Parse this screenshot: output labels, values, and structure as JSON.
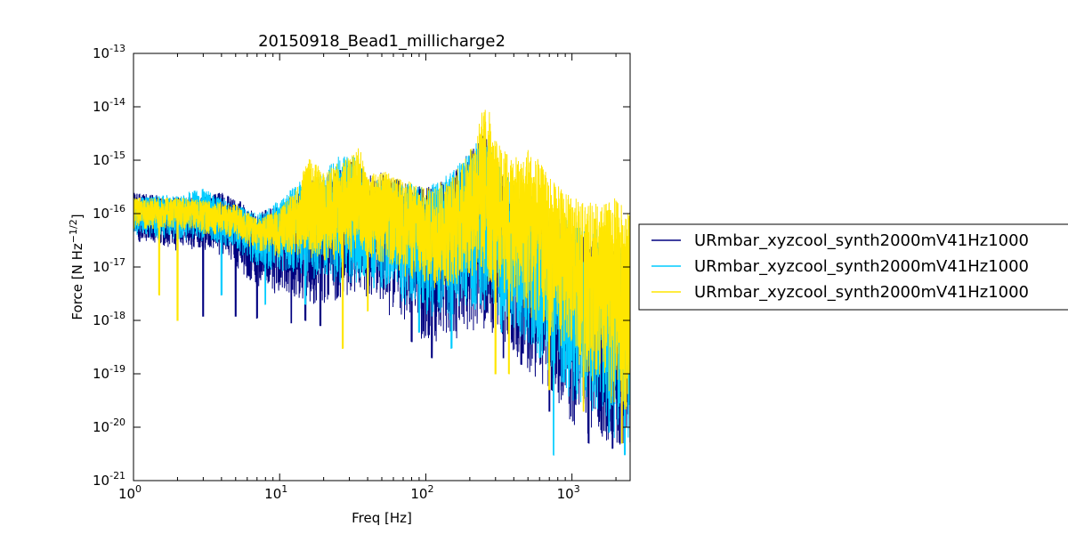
{
  "chart_data": {
    "type": "line",
    "title": "20150918_Bead1_millicharge2",
    "xlabel": "Freq [Hz]",
    "ylabel_main": "Force [N Hz",
    "ylabel_sup": "−1/2",
    "ylabel_end": "]",
    "xscale": "log",
    "yscale": "log",
    "xlim": [
      1,
      2500
    ],
    "ylim": [
      1e-21,
      1e-13
    ],
    "x_ticks": [
      {
        "base": "10",
        "exp": "0",
        "value": 1
      },
      {
        "base": "10",
        "exp": "1",
        "value": 10
      },
      {
        "base": "10",
        "exp": "2",
        "value": 100
      },
      {
        "base": "10",
        "exp": "3",
        "value": 1000
      }
    ],
    "y_ticks": [
      {
        "base": "10",
        "exp": "-21",
        "value": 1e-21
      },
      {
        "base": "10",
        "exp": "-20",
        "value": 1e-20
      },
      {
        "base": "10",
        "exp": "-19",
        "value": 1e-19
      },
      {
        "base": "10",
        "exp": "-18",
        "value": 1e-18
      },
      {
        "base": "10",
        "exp": "-17",
        "value": 1e-17
      },
      {
        "base": "10",
        "exp": "-16",
        "value": 1e-16
      },
      {
        "base": "10",
        "exp": "-15",
        "value": 1e-15
      },
      {
        "base": "10",
        "exp": "-14",
        "value": 1e-14
      },
      {
        "base": "10",
        "exp": "-13",
        "value": 1e-13
      }
    ],
    "legend_position": "right",
    "series": [
      {
        "name": "URmbar_xyzcool_synth2000mV41Hz1000",
        "color": "#000080",
        "envelope_upper": [
          [
            1,
            2.5e-16
          ],
          [
            2,
            2e-16
          ],
          [
            3,
            2.2e-16
          ],
          [
            4,
            2.6e-16
          ],
          [
            5,
            2e-16
          ],
          [
            7,
            1e-16
          ],
          [
            10,
            1.5e-16
          ],
          [
            15,
            4e-16
          ],
          [
            20,
            5e-16
          ],
          [
            25,
            7e-16
          ],
          [
            30,
            1e-15
          ],
          [
            35,
            8e-16
          ],
          [
            40,
            5e-16
          ],
          [
            50,
            6e-16
          ],
          [
            70,
            4e-16
          ],
          [
            100,
            3e-16
          ],
          [
            150,
            5e-16
          ],
          [
            200,
            1.5e-15
          ],
          [
            250,
            4e-15
          ],
          [
            280,
            2e-15
          ],
          [
            300,
            8e-16
          ],
          [
            400,
            3e-16
          ],
          [
            500,
            2e-16
          ],
          [
            700,
            1e-16
          ],
          [
            1000,
            5e-17
          ],
          [
            1500,
            3e-17
          ],
          [
            2000,
            2e-17
          ],
          [
            2500,
            1.5e-17
          ]
        ],
        "envelope_lower": [
          [
            1,
            3e-17
          ],
          [
            2,
            2e-17
          ],
          [
            3,
            2e-17
          ],
          [
            4,
            1.5e-17
          ],
          [
            5,
            1e-17
          ],
          [
            7,
            4e-18
          ],
          [
            10,
            3e-18
          ],
          [
            15,
            2e-18
          ],
          [
            20,
            1.5e-18
          ],
          [
            25,
            2e-18
          ],
          [
            30,
            3e-18
          ],
          [
            40,
            2e-18
          ],
          [
            60,
            1e-18
          ],
          [
            80,
            8e-19
          ],
          [
            100,
            3e-19
          ],
          [
            150,
            4e-19
          ],
          [
            200,
            6e-19
          ],
          [
            300,
            5e-19
          ],
          [
            400,
            2e-19
          ],
          [
            500,
            1e-19
          ],
          [
            700,
            5e-20
          ],
          [
            1000,
            1e-20
          ],
          [
            1500,
            5e-21
          ],
          [
            2000,
            4e-21
          ],
          [
            2500,
            3e-21
          ]
        ],
        "dips": [
          [
            3,
            1.2e-18
          ],
          [
            5,
            1.2e-18
          ],
          [
            7,
            1.1e-18
          ],
          [
            12,
            9e-19
          ],
          [
            15,
            1e-18
          ],
          [
            19,
            8e-19
          ],
          [
            80,
            4e-19
          ],
          [
            110,
            2e-19
          ],
          [
            340,
            2e-19
          ],
          [
            450,
            1.5e-19
          ],
          [
            700,
            2e-20
          ],
          [
            1300,
            5e-21
          ],
          [
            1900,
            4e-21
          ]
        ]
      },
      {
        "name": "URmbar_xyzcool_synth2000mV41Hz1000",
        "color": "#00ccff",
        "envelope_upper": [
          [
            1,
            2e-16
          ],
          [
            2,
            2.3e-16
          ],
          [
            3,
            3e-16
          ],
          [
            4,
            2e-16
          ],
          [
            5,
            1.5e-16
          ],
          [
            7,
            1e-16
          ],
          [
            10,
            1.8e-16
          ],
          [
            15,
            5e-16
          ],
          [
            20,
            6e-16
          ],
          [
            25,
            1.2e-15
          ],
          [
            30,
            1.3e-15
          ],
          [
            35,
            1e-15
          ],
          [
            40,
            4e-16
          ],
          [
            50,
            5e-16
          ],
          [
            70,
            4e-16
          ],
          [
            100,
            3e-16
          ],
          [
            150,
            6e-16
          ],
          [
            200,
            1.5e-15
          ],
          [
            250,
            4e-15
          ],
          [
            280,
            1.5e-15
          ],
          [
            300,
            1e-15
          ],
          [
            400,
            4e-16
          ],
          [
            500,
            3e-16
          ],
          [
            700,
            1.5e-16
          ],
          [
            1000,
            8e-17
          ],
          [
            1500,
            5e-17
          ],
          [
            2000,
            3e-17
          ],
          [
            2500,
            2e-17
          ]
        ],
        "envelope_lower": [
          [
            1,
            4e-17
          ],
          [
            2,
            3e-17
          ],
          [
            3,
            3e-17
          ],
          [
            4,
            2.5e-17
          ],
          [
            5,
            2e-17
          ],
          [
            7,
            1e-17
          ],
          [
            10,
            8e-18
          ],
          [
            15,
            6e-18
          ],
          [
            20,
            5e-18
          ],
          [
            25,
            4e-18
          ],
          [
            30,
            5e-18
          ],
          [
            40,
            4e-18
          ],
          [
            60,
            3e-18
          ],
          [
            80,
            1.5e-18
          ],
          [
            100,
            1e-18
          ],
          [
            150,
            1e-18
          ],
          [
            200,
            1.5e-18
          ],
          [
            300,
            1e-18
          ],
          [
            400,
            5e-19
          ],
          [
            500,
            3e-19
          ],
          [
            700,
            1e-19
          ],
          [
            1000,
            3e-20
          ],
          [
            1500,
            1e-20
          ],
          [
            2000,
            5e-21
          ],
          [
            2500,
            5e-21
          ]
        ],
        "dips": [
          [
            2,
            1.5e-18
          ],
          [
            4,
            3e-18
          ],
          [
            8,
            2e-18
          ],
          [
            15,
            2e-18
          ],
          [
            90,
            6e-19
          ],
          [
            150,
            3e-19
          ],
          [
            330,
            6e-19
          ],
          [
            600,
            2e-19
          ],
          [
            750,
            3e-21
          ],
          [
            1800,
            8e-21
          ],
          [
            2300,
            3e-21
          ]
        ]
      },
      {
        "name": "URmbar_xyzcool_synth2000mV41Hz1000",
        "color": "#ffe600",
        "envelope_upper": [
          [
            1,
            2e-16
          ],
          [
            2,
            2e-16
          ],
          [
            3,
            1.8e-16
          ],
          [
            5,
            1.5e-16
          ],
          [
            7,
            8e-17
          ],
          [
            10,
            1.2e-16
          ],
          [
            13,
            3e-16
          ],
          [
            16,
            1.2e-15
          ],
          [
            20,
            6e-16
          ],
          [
            25,
            9e-16
          ],
          [
            30,
            1.2e-15
          ],
          [
            35,
            2e-15
          ],
          [
            40,
            5e-16
          ],
          [
            50,
            7e-16
          ],
          [
            60,
            5e-16
          ],
          [
            80,
            4e-16
          ],
          [
            100,
            3e-16
          ],
          [
            150,
            5e-16
          ],
          [
            200,
            1.5e-15
          ],
          [
            240,
            8e-15
          ],
          [
            265,
            1.4e-14
          ],
          [
            290,
            3e-15
          ],
          [
            350,
            1.5e-15
          ],
          [
            450,
            1e-15
          ],
          [
            500,
            2e-15
          ],
          [
            700,
            5e-16
          ],
          [
            1000,
            2e-16
          ],
          [
            1500,
            1.5e-16
          ],
          [
            2000,
            2e-16
          ],
          [
            2500,
            1e-16
          ]
        ],
        "envelope_lower": [
          [
            1,
            5e-17
          ],
          [
            2,
            5e-17
          ],
          [
            3,
            4e-17
          ],
          [
            4,
            4e-17
          ],
          [
            5,
            3e-17
          ],
          [
            7,
            2e-17
          ],
          [
            10,
            1.5e-17
          ],
          [
            15,
            1.5e-17
          ],
          [
            20,
            1.2e-17
          ],
          [
            25,
            1e-17
          ],
          [
            30,
            1.5e-17
          ],
          [
            40,
            1.5e-17
          ],
          [
            60,
            8e-18
          ],
          [
            80,
            5e-18
          ],
          [
            100,
            4e-18
          ],
          [
            150,
            4e-18
          ],
          [
            200,
            6e-18
          ],
          [
            300,
            3e-18
          ],
          [
            400,
            2e-18
          ],
          [
            500,
            1e-18
          ],
          [
            700,
            5e-19
          ],
          [
            1000,
            2e-19
          ],
          [
            1500,
            5e-20
          ],
          [
            2000,
            2e-20
          ],
          [
            2500,
            1e-20
          ]
        ],
        "dips": [
          [
            1.5,
            3e-18
          ],
          [
            2,
            1e-18
          ],
          [
            27,
            3e-19
          ],
          [
            40,
            1.5e-18
          ],
          [
            300,
            1e-19
          ],
          [
            370,
            1e-19
          ],
          [
            700,
            5e-20
          ],
          [
            1200,
            2e-20
          ],
          [
            2200,
            5e-21
          ]
        ]
      }
    ]
  }
}
